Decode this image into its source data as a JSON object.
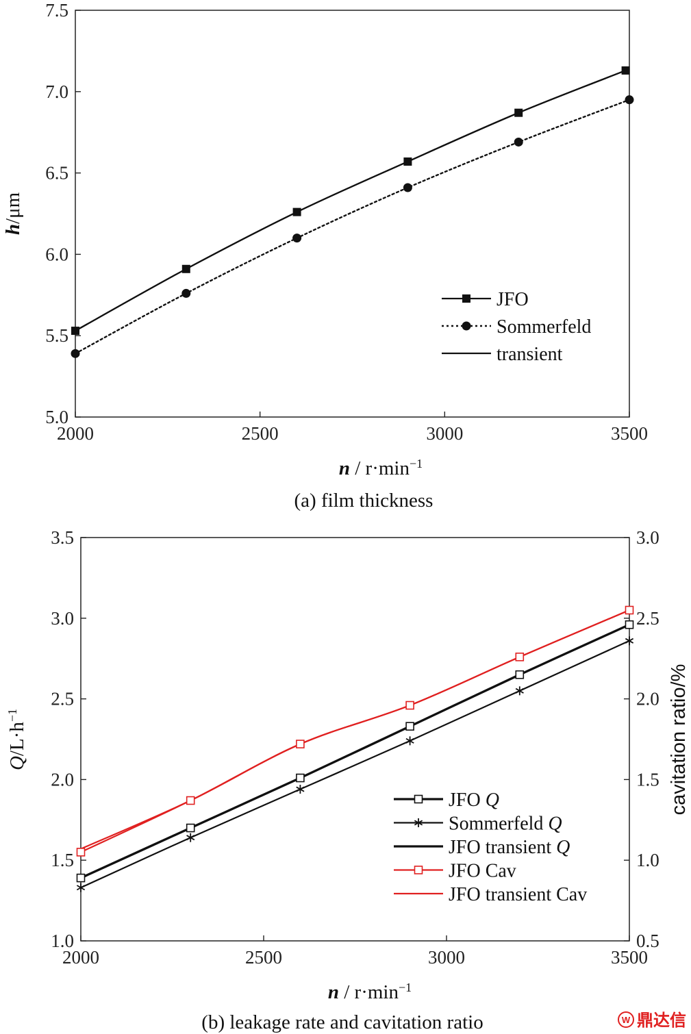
{
  "chart_data": [
    {
      "type": "line",
      "caption": "(a) film thickness",
      "xlabel": {
        "var": "n",
        "unit": "r·min",
        "exp": "−1"
      },
      "ylabel": {
        "var": "h",
        "unit": "μm"
      },
      "xlim": [
        2000,
        3500
      ],
      "ylim": [
        5.0,
        7.5
      ],
      "xticks": [
        2000,
        2500,
        3000,
        3500
      ],
      "yticks": [
        5.0,
        5.5,
        6.0,
        6.5,
        7.0,
        7.5
      ],
      "xtick_labels": [
        "2000",
        "2500",
        "3000",
        "3500"
      ],
      "ytick_labels": [
        "5.0",
        "5.5",
        "6.0",
        "6.5",
        "7.0",
        "7.5"
      ],
      "grid": false,
      "legend_position": "bottom-right",
      "series": [
        {
          "name": "JFO",
          "marker": "square-filled",
          "line": "solid",
          "color": "#111111",
          "x": [
            2000,
            2300,
            2600,
            2900,
            3200,
            3490
          ],
          "y": [
            5.53,
            5.91,
            6.26,
            6.57,
            6.87,
            7.13
          ]
        },
        {
          "name": "Sommerfeld",
          "marker": "circle-filled",
          "line": "dotted",
          "color": "#111111",
          "x": [
            2000,
            2300,
            2600,
            2900,
            3200,
            3500
          ],
          "y": [
            5.39,
            5.76,
            6.1,
            6.41,
            6.69,
            6.95
          ]
        },
        {
          "name": "transient",
          "marker": "none",
          "line": "solid",
          "color": "#111111",
          "x": [
            2000,
            2300,
            2600,
            2900,
            3200,
            3490
          ],
          "y": [
            5.53,
            5.91,
            6.26,
            6.57,
            6.87,
            7.13
          ]
        }
      ]
    },
    {
      "type": "line",
      "caption": "(b) leakage rate and cavitation ratio",
      "xlabel": {
        "var": "n",
        "unit": "r·min",
        "exp": "−1"
      },
      "ylabel": {
        "var": "Q",
        "unit": "L·h",
        "exp": "−1"
      },
      "y2label": "cavitation ratio/%",
      "xlim": [
        2000,
        3500
      ],
      "ylim": [
        1.0,
        3.5
      ],
      "y2lim": [
        0.5,
        3.0
      ],
      "xticks": [
        2000,
        2500,
        3000,
        3500
      ],
      "yticks": [
        1.0,
        1.5,
        2.0,
        2.5,
        3.0,
        3.5
      ],
      "y2ticks": [
        0.5,
        1.0,
        1.5,
        2.0,
        2.5,
        3.0
      ],
      "xtick_labels": [
        "2000",
        "2500",
        "3000",
        "3500"
      ],
      "ytick_labels": [
        "1.0",
        "1.5",
        "2.0",
        "2.5",
        "3.0",
        "3.5"
      ],
      "y2tick_labels": [
        "0.5",
        "1.0",
        "1.5",
        "2.0",
        "2.5",
        "3.0"
      ],
      "grid": false,
      "legend_position": "bottom-right",
      "series": [
        {
          "name": "JFO",
          "name_italic": "Q",
          "axis": "left",
          "marker": "square-open",
          "line": "solid-thick",
          "color": "#111111",
          "x": [
            2000,
            2300,
            2600,
            2900,
            3200,
            3500
          ],
          "y": [
            1.39,
            1.7,
            2.01,
            2.33,
            2.65,
            2.96
          ]
        },
        {
          "name": "Sommerfeld",
          "name_italic": "Q",
          "axis": "left",
          "marker": "asterisk",
          "line": "solid",
          "color": "#111111",
          "x": [
            2000,
            2300,
            2600,
            2900,
            3200,
            3500
          ],
          "y": [
            1.33,
            1.64,
            1.94,
            2.24,
            2.55,
            2.86
          ]
        },
        {
          "name": "JFO transient",
          "name_italic": "Q",
          "axis": "left",
          "marker": "none",
          "line": "solid-thick",
          "color": "#111111",
          "x": [
            2000,
            2300,
            2600,
            2900,
            3200,
            3500
          ],
          "y": [
            1.39,
            1.7,
            2.01,
            2.33,
            2.65,
            2.96
          ]
        },
        {
          "name": "JFO Cav",
          "name_italic": "",
          "axis": "right",
          "marker": "square-open",
          "line": "solid",
          "color": "#e02020",
          "x": [
            2000,
            2300,
            2600,
            2900,
            3200,
            3500
          ],
          "y": [
            1.05,
            1.37,
            1.72,
            1.96,
            2.26,
            2.55
          ]
        },
        {
          "name": "JFO transient Cav",
          "name_italic": "",
          "axis": "right",
          "marker": "none",
          "line": "solid",
          "color": "#e02020",
          "x": [
            2000,
            2300,
            2600,
            2900,
            3200,
            3500
          ],
          "y": [
            1.07,
            1.37,
            1.72,
            1.96,
            2.26,
            2.55
          ]
        }
      ]
    }
  ],
  "watermark": "鼎达信"
}
